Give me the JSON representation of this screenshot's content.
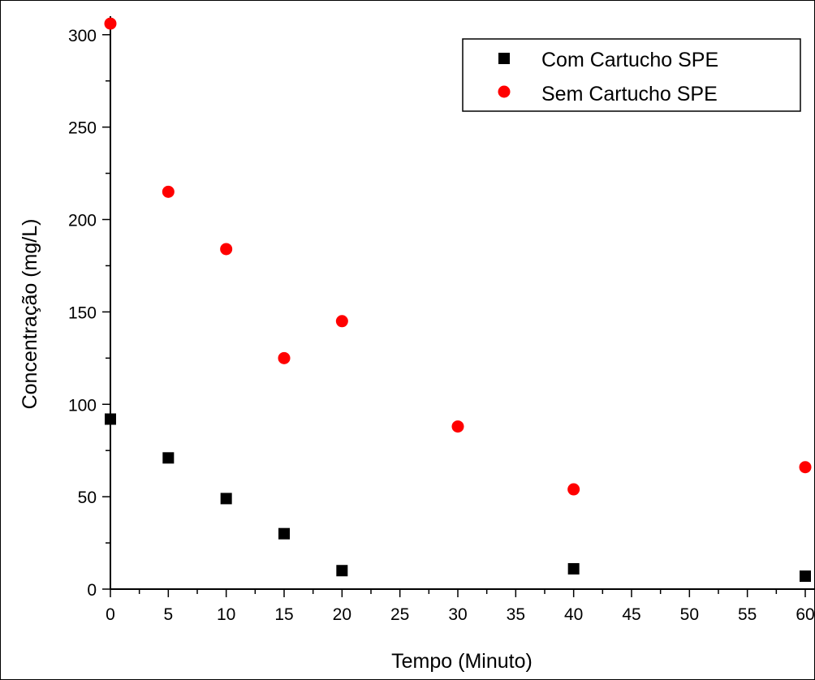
{
  "chart_data": {
    "type": "scatter",
    "title": "",
    "xlabel": "Tempo (Minuto)",
    "ylabel": "Concentração (mg/L)",
    "xlim": [
      0,
      60
    ],
    "ylim": [
      0,
      310
    ],
    "xticks": [
      0,
      5,
      10,
      15,
      20,
      25,
      30,
      35,
      40,
      45,
      50,
      55,
      60
    ],
    "xtick_labels": [
      "0",
      "5",
      "10",
      "15",
      "20",
      "25",
      "30",
      "35",
      "40",
      "45",
      "50",
      "55",
      "60"
    ],
    "yticks": [
      0,
      50,
      100,
      150,
      200,
      250,
      300
    ],
    "ytick_labels": [
      "0",
      "50",
      "100",
      "150",
      "200",
      "250",
      "300"
    ],
    "grid": false,
    "legend_position": "top-right",
    "series": [
      {
        "name": "Com Cartucho SPE",
        "marker": "square",
        "color": "#000000",
        "x": [
          0,
          5,
          10,
          15,
          20,
          40,
          60
        ],
        "y": [
          92,
          71,
          49,
          30,
          10,
          11,
          7
        ]
      },
      {
        "name": "Sem Cartucho SPE",
        "marker": "circle",
        "color": "#ff0000",
        "x": [
          0,
          5,
          10,
          15,
          20,
          30,
          40,
          60
        ],
        "y": [
          306,
          215,
          184,
          125,
          145,
          88,
          54,
          66
        ]
      }
    ]
  }
}
